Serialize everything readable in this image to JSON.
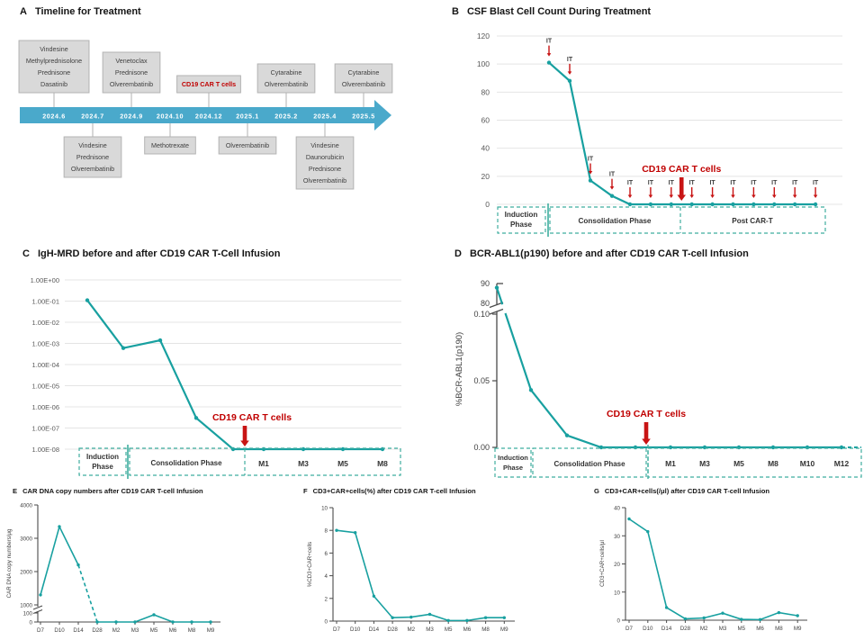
{
  "colors": {
    "teal": "#18a0a0",
    "red": "#c00000",
    "arrow_red": "#c81414",
    "timeline_blue": "#4aa9cb",
    "box_bg": "#d9d9d9",
    "box_border": "#b3b3b3",
    "box_text": "#3f3f3f",
    "grid": "#e4e4e4",
    "axis_text": "#595959",
    "axis_line": "#4a4a4a",
    "phase_dash": "#3fae9f",
    "phase_text": "#333333"
  },
  "panel_a": {
    "label": "A",
    "title": "Timeline for Treatment",
    "dates": [
      "2024.6",
      "2024.7",
      "2024.9",
      "2024.10",
      "2024.12",
      "2025.1",
      "2025.2",
      "2025.4",
      "2025.5"
    ],
    "boxes_above": [
      {
        "date_index": 0,
        "red": false,
        "lines": [
          "Vindesine",
          "Methylprednisolone",
          "Prednisone",
          "Dasatinib"
        ]
      },
      {
        "date_index": 2,
        "red": false,
        "lines": [
          "Venetoclax",
          "Prednisone",
          "Olverembatinib"
        ]
      },
      {
        "date_index": 4,
        "red": true,
        "lines": [
          "CD19 CAR T cells"
        ]
      },
      {
        "date_index": 6,
        "red": false,
        "lines": [
          "Cytarabine",
          "Olverembatinib"
        ]
      },
      {
        "date_index": 8,
        "red": false,
        "lines": [
          "Cytarabine",
          "Olverembatinib"
        ]
      }
    ],
    "boxes_below": [
      {
        "date_index": 1,
        "red": false,
        "lines": [
          "Vindesine",
          "Prednisone",
          "Olverembatinib"
        ]
      },
      {
        "date_index": 3,
        "red": false,
        "lines": [
          "Methotrexate"
        ]
      },
      {
        "date_index": 5,
        "red": false,
        "lines": [
          "Olverembatinib"
        ]
      },
      {
        "date_index": 7,
        "red": false,
        "lines": [
          "Vindesine",
          "Daunorubicin",
          "Prednisone",
          "Olverembatinib"
        ]
      }
    ]
  },
  "chart_data": [
    {
      "id": "panel-b",
      "label": "B",
      "type": "line",
      "title": "CSF Blast Cell Count During Treatment",
      "ylim": [
        0,
        120
      ],
      "yticks": [
        0,
        20,
        40,
        60,
        80,
        100,
        120
      ],
      "grid": true,
      "values": [
        101,
        88,
        17,
        6,
        0,
        0,
        0,
        0,
        0,
        0,
        0,
        0,
        0,
        0
      ],
      "it_label": "IT",
      "car_t_label": "CD19 CAR T cells",
      "car_t_arrow_after_point": 6,
      "phases": [
        {
          "name": "Induction Phase"
        },
        {
          "name": "Consolidation Phase"
        },
        {
          "name": "Post CAR-T"
        }
      ]
    },
    {
      "id": "panel-c",
      "label": "C",
      "type": "line",
      "title": "IgH-MRD before and after CD19 CAR T-Cell Infusion",
      "log_scale": true,
      "ytick_labels": [
        "1.00E+00",
        "1.00E-01",
        "1.00E-02",
        "1.00E-03",
        "1.00E-04",
        "1.00E-05",
        "1.00E-06",
        "1.00E-07",
        "1.00E-08"
      ],
      "grid": true,
      "values": [
        0.11,
        0.0006,
        0.0014,
        3e-07,
        1e-08,
        1e-08,
        1e-08,
        1e-08,
        1e-08
      ],
      "month_labels": [
        "M1",
        "M3",
        "M5",
        "M8"
      ],
      "car_t_label": "CD19 CAR T cells",
      "phases": [
        {
          "name": "Induction Phase"
        },
        {
          "name": "Consolidation Phase"
        }
      ]
    },
    {
      "id": "panel-d",
      "label": "D",
      "type": "line",
      "title": "BCR-ABL1(p190) before and after CD19 CAR T-cell Infusion",
      "ylabel": "%BCR-ABL1(p190)",
      "broken_axis": true,
      "yticks_top": [
        "90",
        "80"
      ],
      "yticks_bottom": [
        "0.10",
        "0.05",
        "0.00"
      ],
      "values": [
        88,
        0.043,
        0.009,
        0,
        0,
        0,
        0,
        0,
        0,
        0,
        0
      ],
      "month_labels": [
        "M1",
        "M3",
        "M5",
        "M8",
        "M10",
        "M12"
      ],
      "car_t_label": "CD19 CAR T cells",
      "phases": [
        {
          "name": "Induction Phase"
        },
        {
          "name": "Consolidation Phase"
        }
      ]
    },
    {
      "id": "panel-e",
      "label": "E",
      "type": "line",
      "title": "CAR DNA copy numbers after CD19 CAR T-cell Infusion",
      "ylabel": "CAR DNA copy numbers/μg",
      "broken_axis": true,
      "yticks_top": [
        {
          "v": 4000,
          "label": "4000"
        },
        {
          "v": 3000,
          "label": "3000"
        },
        {
          "v": 2000,
          "label": "2000"
        },
        {
          "v": 1000,
          "label": "1000"
        }
      ],
      "yticks_bottom": [
        {
          "v": 100,
          "label": "100"
        },
        {
          "v": 0,
          "label": "0"
        }
      ],
      "categories": [
        "D7",
        "D10",
        "D14",
        "D28",
        "M2",
        "M3",
        "M5",
        "M6",
        "M8",
        "M9"
      ],
      "values": [
        1300,
        3350,
        2200,
        0,
        0,
        0,
        80,
        0,
        0,
        0
      ]
    },
    {
      "id": "panel-f",
      "label": "F",
      "type": "line",
      "title": "CD3+CAR+cells(%) after CD19 CAR T-cell Infusion",
      "ylabel": "%CD3+CAR+cells",
      "yticks": [
        0,
        2,
        4,
        6,
        8,
        10
      ],
      "categories": [
        "D7",
        "D10",
        "D14",
        "D28",
        "M2",
        "M3",
        "M5",
        "M6",
        "M8",
        "M9"
      ],
      "values": [
        8,
        7.8,
        2.2,
        0.3,
        0.35,
        0.6,
        0.05,
        0.05,
        0.3,
        0.3
      ]
    },
    {
      "id": "panel-g",
      "label": "G",
      "type": "line",
      "title": "CD3+CAR+cells(/μl) after CD19 CAR T-cell Infusion",
      "ylabel": "CD3+CAR+cells/μl",
      "yticks": [
        0,
        10,
        20,
        30,
        40
      ],
      "categories": [
        "D7",
        "D10",
        "D14",
        "D28",
        "M2",
        "M3",
        "M5",
        "M6",
        "M8",
        "M9"
      ],
      "values": [
        36,
        31.5,
        4.5,
        0.5,
        0.8,
        2.5,
        0.3,
        0.2,
        2.7,
        1.6
      ]
    }
  ]
}
